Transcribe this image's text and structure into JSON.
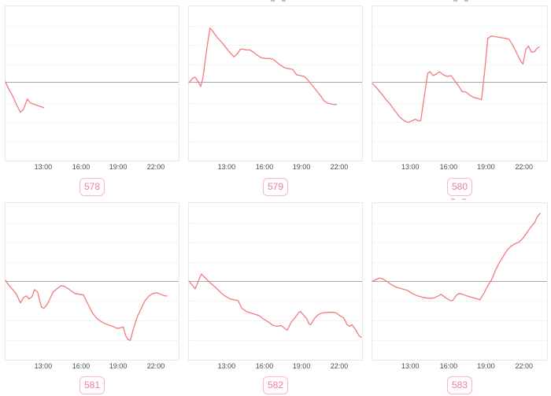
{
  "colors": {
    "line": "#f4797e",
    "baseline": "#a9a9a9",
    "gridline": "#ececec",
    "chart_border": "#e8e8e8",
    "tick_text": "#4d4d4d",
    "badge_text": "#ee7f9f",
    "badge_border": "#f7b8c7",
    "background": "#ffffff"
  },
  "chart_data": {
    "type": "line",
    "title": "",
    "xlabel": "",
    "ylabel": "",
    "x_ticks": [
      "13:00",
      "16:00",
      "19:00",
      "22:00"
    ],
    "x_tick_positions_pct": [
      22,
      43.7,
      64.9,
      86.5
    ],
    "grid": true,
    "legend_position": "none",
    "points_format": "percent of plot area, x: 0=left 100=right (approx 10:00 to 24:00), y: 0=top 100=bottom, baseline (zero/reference line) near 50",
    "charts": [
      {
        "label": "578",
        "baseline_pct": 49.2,
        "points": [
          [
            0,
            49
          ],
          [
            1.8,
            53.5
          ],
          [
            4.1,
            58
          ],
          [
            6.3,
            63.6
          ],
          [
            8.6,
            68.7
          ],
          [
            10.4,
            66.7
          ],
          [
            12.6,
            60.1
          ],
          [
            14.4,
            62.6
          ],
          [
            16.7,
            63.6
          ],
          [
            19.4,
            64.6
          ],
          [
            22.1,
            65.7
          ]
        ]
      },
      {
        "label": "579",
        "baseline_pct": 49.2,
        "points": [
          [
            0,
            49.5
          ],
          [
            2.3,
            46.5
          ],
          [
            3.6,
            46
          ],
          [
            5.4,
            49
          ],
          [
            6.8,
            52
          ],
          [
            8.1,
            46.5
          ],
          [
            10.4,
            26.8
          ],
          [
            12.2,
            14.1
          ],
          [
            13.5,
            15.7
          ],
          [
            15.3,
            18.7
          ],
          [
            17.1,
            21.2
          ],
          [
            18.9,
            23.2
          ],
          [
            20.7,
            25.8
          ],
          [
            22.5,
            28.3
          ],
          [
            24.3,
            30.8
          ],
          [
            26.1,
            32.8
          ],
          [
            27.9,
            30.8
          ],
          [
            29.7,
            27.8
          ],
          [
            31.5,
            27.8
          ],
          [
            33.3,
            28.3
          ],
          [
            35.1,
            28.3
          ],
          [
            37.4,
            29.8
          ],
          [
            39.6,
            31.8
          ],
          [
            41.9,
            33.3
          ],
          [
            44.1,
            33.8
          ],
          [
            46.4,
            33.8
          ],
          [
            48.6,
            34.3
          ],
          [
            50.9,
            36.4
          ],
          [
            53.2,
            38.4
          ],
          [
            55.4,
            39.9
          ],
          [
            57.7,
            40.4
          ],
          [
            59.9,
            40.9
          ],
          [
            62.2,
            44.4
          ],
          [
            64.4,
            44.9
          ],
          [
            66.7,
            45.5
          ],
          [
            68.5,
            47.5
          ],
          [
            70.3,
            50
          ],
          [
            72.5,
            53
          ],
          [
            74.3,
            55.6
          ],
          [
            76.1,
            58.1
          ],
          [
            77.9,
            61.1
          ],
          [
            79.7,
            62.6
          ],
          [
            81.5,
            63.1
          ],
          [
            83.3,
            63.6
          ],
          [
            85.1,
            63.6
          ]
        ]
      },
      {
        "label": "580",
        "baseline_pct": 49.2,
        "points": [
          [
            0,
            50
          ],
          [
            2.2,
            52.5
          ],
          [
            4.9,
            56.1
          ],
          [
            7.6,
            60.1
          ],
          [
            10.3,
            63.6
          ],
          [
            12.9,
            67.7
          ],
          [
            15.6,
            71.7
          ],
          [
            18.3,
            74.2
          ],
          [
            20.5,
            75.3
          ],
          [
            22.8,
            74.2
          ],
          [
            24.6,
            73.2
          ],
          [
            26.3,
            74.2
          ],
          [
            27.7,
            74.2
          ],
          [
            29.9,
            57.1
          ],
          [
            31.7,
            43.4
          ],
          [
            33,
            42.4
          ],
          [
            34.8,
            44.9
          ],
          [
            36.6,
            43.9
          ],
          [
            38.4,
            42.4
          ],
          [
            40.6,
            44.4
          ],
          [
            42.9,
            45.5
          ],
          [
            45.1,
            44.9
          ],
          [
            47.3,
            48.5
          ],
          [
            49.6,
            52
          ],
          [
            51.3,
            55.1
          ],
          [
            53.6,
            55.6
          ],
          [
            55.8,
            57.6
          ],
          [
            58,
            59.1
          ],
          [
            60.3,
            59.6
          ],
          [
            62.5,
            60.6
          ],
          [
            64.3,
            41.9
          ],
          [
            66.1,
            20.7
          ],
          [
            68.3,
            19.2
          ],
          [
            70.5,
            19.7
          ],
          [
            73.2,
            20.2
          ],
          [
            75.9,
            20.7
          ],
          [
            78.1,
            21.2
          ],
          [
            80.4,
            25.3
          ],
          [
            82.6,
            30.3
          ],
          [
            84.8,
            35.4
          ],
          [
            86.2,
            37.4
          ],
          [
            87.9,
            27.8
          ],
          [
            89.3,
            25.8
          ],
          [
            91.1,
            29.8
          ],
          [
            92.9,
            29.3
          ],
          [
            94.2,
            27.3
          ],
          [
            95.5,
            26.3
          ]
        ]
      },
      {
        "label": "581",
        "baseline_pct": 49.8,
        "points": [
          [
            0,
            49.3
          ],
          [
            1.8,
            52.2
          ],
          [
            4.1,
            55.2
          ],
          [
            6.3,
            58.2
          ],
          [
            8.6,
            63.7
          ],
          [
            10.4,
            60.2
          ],
          [
            12.2,
            59.2
          ],
          [
            13.5,
            61.2
          ],
          [
            15.3,
            59.7
          ],
          [
            16.7,
            55.2
          ],
          [
            18.5,
            56.7
          ],
          [
            20.7,
            66.2
          ],
          [
            22.1,
            67.2
          ],
          [
            24.3,
            64.2
          ],
          [
            27.5,
            56.7
          ],
          [
            29.7,
            54.7
          ],
          [
            32,
            52.7
          ],
          [
            34.2,
            53.2
          ],
          [
            36.9,
            55.2
          ],
          [
            40.1,
            57.7
          ],
          [
            42.8,
            58.2
          ],
          [
            45,
            58.7
          ],
          [
            46.8,
            62.7
          ],
          [
            50,
            69.7
          ],
          [
            52.7,
            73.6
          ],
          [
            55.9,
            76.1
          ],
          [
            59,
            77.6
          ],
          [
            61.7,
            78.6
          ],
          [
            64.9,
            80.1
          ],
          [
            66.2,
            79.6
          ],
          [
            68,
            79.1
          ],
          [
            69.4,
            84.6
          ],
          [
            70.7,
            87.1
          ],
          [
            72.1,
            87.6
          ],
          [
            73.9,
            80.1
          ],
          [
            76.1,
            72.6
          ],
          [
            78.4,
            67.2
          ],
          [
            80.6,
            62.2
          ],
          [
            82.9,
            59.2
          ],
          [
            85.1,
            57.7
          ],
          [
            87.4,
            57.2
          ],
          [
            89.6,
            58.2
          ],
          [
            91.9,
            59.2
          ],
          [
            93.2,
            59.2
          ]
        ]
      },
      {
        "label": "582",
        "baseline_pct": 49.8,
        "points": [
          [
            0,
            49.8
          ],
          [
            1.8,
            52.2
          ],
          [
            3.6,
            54.7
          ],
          [
            5.4,
            49.8
          ],
          [
            7.2,
            45.3
          ],
          [
            8.6,
            46.8
          ],
          [
            10.4,
            48.8
          ],
          [
            12.6,
            51.2
          ],
          [
            15.3,
            53.7
          ],
          [
            18.5,
            57.2
          ],
          [
            20.7,
            59.2
          ],
          [
            23.9,
            61.2
          ],
          [
            26.1,
            61.7
          ],
          [
            28.4,
            62.2
          ],
          [
            30.6,
            67.2
          ],
          [
            33.3,
            69.2
          ],
          [
            35.6,
            70.1
          ],
          [
            38.7,
            71.1
          ],
          [
            41,
            72.1
          ],
          [
            43.2,
            74.1
          ],
          [
            45.5,
            75.6
          ],
          [
            48.6,
            78.1
          ],
          [
            50.9,
            78.6
          ],
          [
            53.2,
            78.1
          ],
          [
            55.4,
            80.1
          ],
          [
            56.8,
            81.1
          ],
          [
            59,
            76.1
          ],
          [
            61.3,
            73.1
          ],
          [
            63.5,
            69.7
          ],
          [
            64.4,
            69.2
          ],
          [
            66.7,
            72.1
          ],
          [
            68,
            73.6
          ],
          [
            69.4,
            77.1
          ],
          [
            70.3,
            77.6
          ],
          [
            72.5,
            73.6
          ],
          [
            74.8,
            71.1
          ],
          [
            77,
            70.1
          ],
          [
            80.2,
            69.7
          ],
          [
            82.9,
            69.7
          ],
          [
            85.1,
            70.1
          ],
          [
            87.4,
            72.1
          ],
          [
            89.2,
            73.1
          ],
          [
            91.4,
            77.6
          ],
          [
            92.8,
            78.6
          ],
          [
            94.1,
            77.6
          ],
          [
            95.9,
            80.1
          ],
          [
            98.2,
            84.6
          ],
          [
            99.5,
            85.6
          ]
        ]
      },
      {
        "label": "583",
        "baseline_pct": 49.8,
        "points": [
          [
            0,
            49.8
          ],
          [
            2.2,
            48.8
          ],
          [
            4,
            47.8
          ],
          [
            5.8,
            48.3
          ],
          [
            8,
            49.8
          ],
          [
            11.2,
            52.2
          ],
          [
            13.8,
            53.7
          ],
          [
            17,
            54.7
          ],
          [
            20.1,
            55.7
          ],
          [
            22.8,
            57.7
          ],
          [
            25.9,
            59.2
          ],
          [
            29,
            60.2
          ],
          [
            31.7,
            60.7
          ],
          [
            34.8,
            60.7
          ],
          [
            37.9,
            59.2
          ],
          [
            39.3,
            58.2
          ],
          [
            42.4,
            60.7
          ],
          [
            44.6,
            62.2
          ],
          [
            46,
            62.2
          ],
          [
            48.2,
            58.7
          ],
          [
            49.6,
            57.7
          ],
          [
            51.8,
            58.2
          ],
          [
            54,
            59.2
          ],
          [
            57.1,
            60.2
          ],
          [
            60.3,
            61.2
          ],
          [
            61.6,
            61.7
          ],
          [
            63.8,
            57.7
          ],
          [
            66.1,
            52.7
          ],
          [
            68.3,
            48.8
          ],
          [
            70.5,
            42.8
          ],
          [
            72.8,
            37.8
          ],
          [
            75,
            33.8
          ],
          [
            77.2,
            29.9
          ],
          [
            79.5,
            27.4
          ],
          [
            81.7,
            25.9
          ],
          [
            83.9,
            24.9
          ],
          [
            86.2,
            22.4
          ],
          [
            88.4,
            18.9
          ],
          [
            90.6,
            15.4
          ],
          [
            92.9,
            12.4
          ],
          [
            94.2,
            9
          ],
          [
            96,
            6.5
          ]
        ]
      }
    ]
  }
}
